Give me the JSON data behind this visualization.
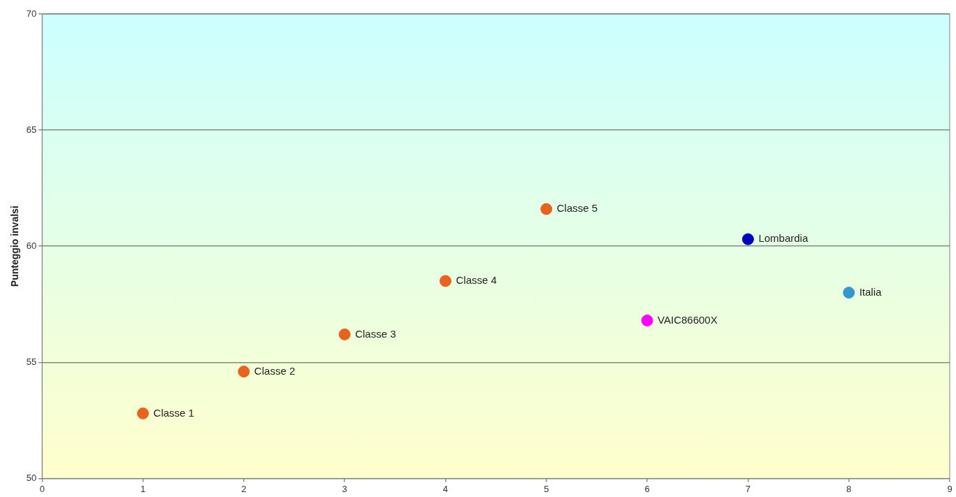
{
  "chart_data": {
    "type": "scatter",
    "ylabel": "Punteggio invalsi",
    "xlim": [
      0,
      9
    ],
    "xticks": [
      0,
      1,
      2,
      3,
      4,
      5,
      6,
      7,
      8,
      9
    ],
    "ylim": [
      50,
      70
    ],
    "yticks": [
      50,
      55,
      60,
      65,
      70
    ],
    "grid": "y",
    "legend": false,
    "marker": "circle",
    "series": [
      {
        "name": "Classe 1",
        "color": "#e8641e",
        "x": [
          1
        ],
        "values": [
          52.8
        ]
      },
      {
        "name": "Classe 2",
        "color": "#e8641e",
        "x": [
          2
        ],
        "values": [
          54.6
        ]
      },
      {
        "name": "Classe 3",
        "color": "#e8641e",
        "x": [
          3
        ],
        "values": [
          56.2
        ]
      },
      {
        "name": "Classe 4",
        "color": "#e8641e",
        "x": [
          4
        ],
        "values": [
          58.5
        ]
      },
      {
        "name": "Classe 5",
        "color": "#e8641e",
        "x": [
          5
        ],
        "values": [
          61.6
        ]
      },
      {
        "name": "VAIC86600X",
        "color": "#ff00ff",
        "x": [
          6
        ],
        "values": [
          56.8
        ]
      },
      {
        "name": "Lombardia",
        "color": "#0000c0",
        "x": [
          7
        ],
        "values": [
          60.3
        ]
      },
      {
        "name": "Italia",
        "color": "#3399cc",
        "x": [
          8
        ],
        "values": [
          58.0
        ]
      }
    ]
  }
}
